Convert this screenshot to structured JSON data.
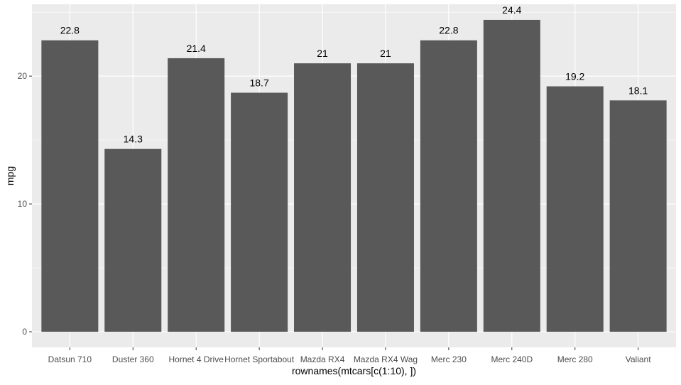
{
  "chart_data": {
    "type": "bar",
    "categories": [
      "Datsun 710",
      "Duster 360",
      "Hornet 4 Drive",
      "Hornet Sportabout",
      "Mazda RX4",
      "Mazda RX4 Wag",
      "Merc 230",
      "Merc 240D",
      "Merc 280",
      "Valiant"
    ],
    "values": [
      22.8,
      14.3,
      21.4,
      18.7,
      21,
      21,
      22.8,
      24.4,
      19.2,
      18.1
    ],
    "data_labels": [
      "22.8",
      "14.3",
      "21.4",
      "18.7",
      "21",
      "21",
      "22.8",
      "24.4",
      "19.2",
      "18.1"
    ],
    "xlabel": "rownames(mtcars[c(1:10), ])",
    "ylabel": "mpg",
    "ylim": [
      -1.22,
      25.62
    ],
    "yticks": [
      0,
      10,
      20
    ],
    "ytick_labels": [
      "0",
      "10",
      "20"
    ],
    "grid": true,
    "legend": "none",
    "colors": {
      "bar": "#595959",
      "panel": "#ebebeb",
      "grid_major": "#ffffff",
      "axis_text": "#4d4d4d",
      "title_text": "#000000"
    }
  }
}
